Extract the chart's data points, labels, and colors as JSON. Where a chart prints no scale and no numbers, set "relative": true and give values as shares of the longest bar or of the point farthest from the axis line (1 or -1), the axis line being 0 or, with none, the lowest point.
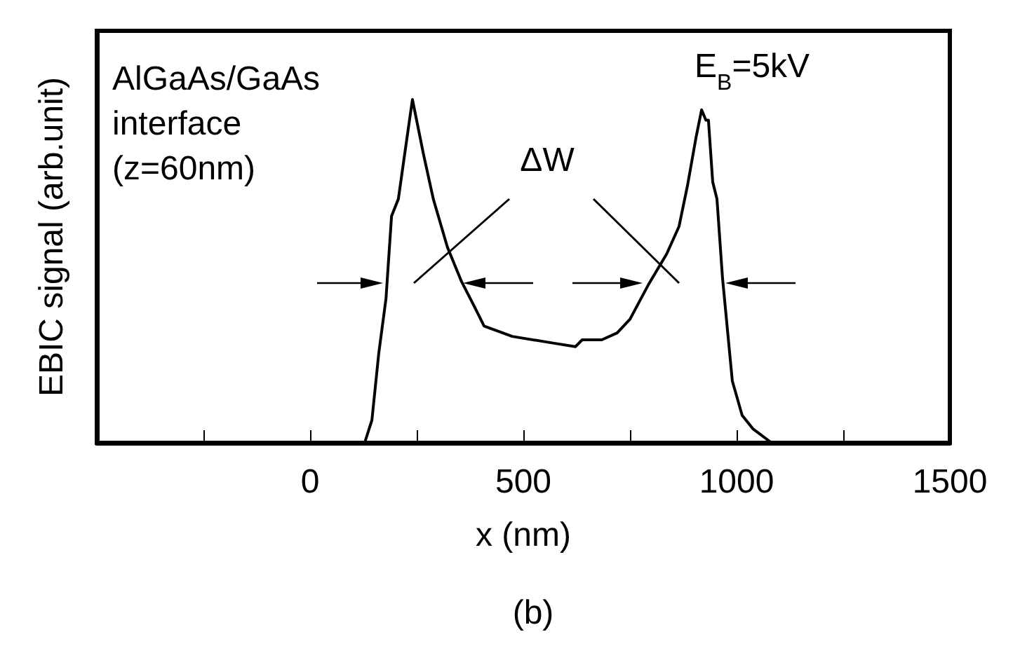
{
  "chart_data": {
    "type": "line",
    "relative": true,
    "xlabel": "x (nm)",
    "ylabel": "EBIC signal (arb.unit)",
    "annotations": [
      "AlGaAs/GaAs\ninterface\n(z=60nm)",
      "ΔW",
      "E$_{B}$=5kV",
      "(b)"
    ],
    "xlim": [
      -500,
      1500
    ],
    "xticks": [
      {
        "value": -250,
        "label": null
      },
      0,
      {
        "value": 250,
        "label": null
      },
      500,
      {
        "value": 750,
        "label": null
      },
      1000,
      {
        "value": 1250,
        "label": null
      },
      1500
    ],
    "grid": false,
    "marker": "none",
    "line_style": "solid",
    "series": [
      {
        "color": "#000000",
        "x": [
          128,
          145,
          161,
          178,
          191,
          207,
          224,
          240,
          266,
          289,
          322,
          355,
          388,
          408,
          474,
          572,
          622,
          638,
          684,
          720,
          750,
          793,
          836,
          865,
          885,
          905,
          918,
          928,
          934,
          944,
          954,
          967,
          990,
          1013,
          1039,
          1082
        ],
        "values": [
          0,
          0.066,
          0.26,
          0.42,
          0.66,
          0.71,
          0.86,
          1.0,
          0.84,
          0.71,
          0.57,
          0.47,
          0.39,
          0.34,
          0.31,
          0.29,
          0.28,
          0.3,
          0.3,
          0.32,
          0.36,
          0.46,
          0.55,
          0.63,
          0.75,
          0.89,
          0.97,
          0.94,
          0.94,
          0.76,
          0.71,
          0.48,
          0.18,
          0.08,
          0.04,
          0
        ]
      }
    ]
  }
}
